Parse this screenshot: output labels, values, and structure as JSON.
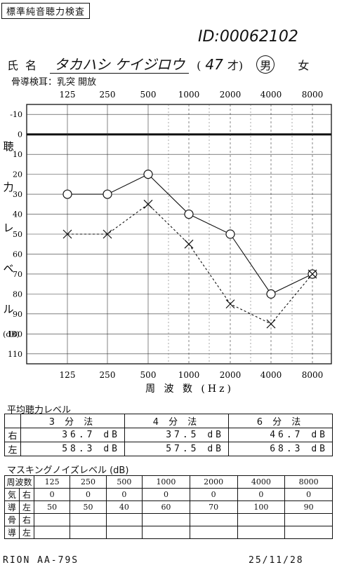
{
  "header": {
    "form_title": "標準純音聴力検査",
    "id_label": "ID:",
    "id_value": "00062102",
    "name_label": "氏名",
    "name_value": "タカハシ ケイジロウ",
    "age_open": "(",
    "age_value": "47",
    "age_unit": "才)",
    "sex_male": "男",
    "sex_female": "女",
    "bone_conduction_note": "骨導検耳：乳突 開放"
  },
  "chart_data": {
    "type": "line",
    "x_categories": [
      "125",
      "250",
      "500",
      "1000",
      "2000",
      "4000",
      "8000"
    ],
    "ylabel_chars": [
      "聴",
      "力",
      "レ",
      "ベ",
      "ル"
    ],
    "yunit": "(dB)",
    "ylim": [
      -15,
      115
    ],
    "yticks": [
      -10,
      0,
      10,
      20,
      30,
      40,
      50,
      60,
      70,
      80,
      90,
      100,
      110
    ],
    "xlabel": "周 波 数 (Hz)",
    "series": [
      {
        "marker": "circle",
        "line": "solid",
        "values": [
          30,
          30,
          20,
          40,
          50,
          80,
          70
        ]
      },
      {
        "marker": "cross",
        "line": "dashed",
        "values": [
          50,
          50,
          35,
          55,
          85,
          95,
          70
        ]
      }
    ],
    "grid": true
  },
  "pta": {
    "title": "平均聴力レベル",
    "columns": [
      "3 分 法",
      "4 分 法",
      "6 分 法"
    ],
    "rows": [
      {
        "side": "右",
        "values": [
          "36.7 dB",
          "37.5 dB",
          "46.7 dB"
        ]
      },
      {
        "side": "左",
        "values": [
          "58.3 dB",
          "57.5 dB",
          "68.3 dB"
        ]
      }
    ]
  },
  "masking": {
    "title": "マスキングノイズレベル (dB)",
    "header_label": "周波数",
    "freqs": [
      "125",
      "250",
      "500",
      "1000",
      "2000",
      "4000",
      "8000"
    ],
    "rows": [
      {
        "k1": "気",
        "k2": "右",
        "values": [
          "0",
          "0",
          "0",
          "0",
          "0",
          "0",
          "0"
        ]
      },
      {
        "k1": "導",
        "k2": "左",
        "values": [
          "50",
          "50",
          "40",
          "60",
          "70",
          "100",
          "90"
        ]
      },
      {
        "k1": "骨",
        "k2": "右",
        "values": [
          "",
          "",
          "",
          "",
          "",
          "",
          ""
        ]
      },
      {
        "k1": "導",
        "k2": "左",
        "values": [
          "",
          "",
          "",
          "",
          "",
          "",
          ""
        ]
      }
    ]
  },
  "footer": {
    "device": "RION AA-79S",
    "date": "25/11/28"
  }
}
